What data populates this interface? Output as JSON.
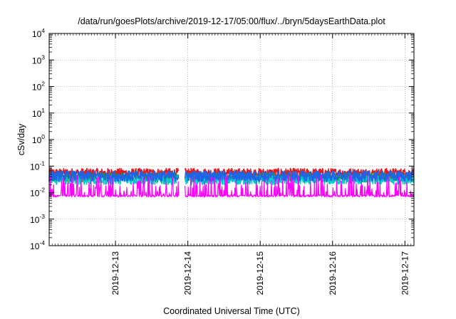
{
  "chart_data": {
    "type": "line",
    "title": "/data/run/goesPlots/archive/2019-12-17/05:00/flux/../bryn/5daysEarthData.plot",
    "xlabel": "Coordinated Universal Time (UTC)",
    "ylabel": "cSv/day",
    "yscale": "log",
    "ylim": [
      0.0001,
      10000
    ],
    "xlim": [
      "2019-12-12T02:00",
      "2019-12-17T03:00"
    ],
    "y_ticks": [
      {
        "base": "10",
        "exp": "-4"
      },
      {
        "base": "10",
        "exp": "-3"
      },
      {
        "base": "10",
        "exp": "-2"
      },
      {
        "base": "10",
        "exp": "-1"
      },
      {
        "base": "10",
        "exp": "0"
      },
      {
        "base": "10",
        "exp": "1"
      },
      {
        "base": "10",
        "exp": "2"
      },
      {
        "base": "10",
        "exp": "3"
      },
      {
        "base": "10",
        "exp": "4"
      }
    ],
    "x_ticks": [
      "2019-12-13",
      "2019-12-14",
      "2019-12-15",
      "2019-12-16",
      "2019-12-17"
    ],
    "x_tick_dates": [
      "2019-12-13T00:00",
      "2019-12-14T00:00",
      "2019-12-15T00:00",
      "2019-12-16T00:00",
      "2019-12-17T00:00"
    ],
    "grid": true,
    "legend": "none",
    "data_gaps": [
      [
        "2019-12-13T21:00",
        "2019-12-13T23:00"
      ]
    ],
    "series": [
      {
        "color": "#e41a1c",
        "base": 0.055,
        "low": 0.045,
        "high": 0.1,
        "noise": 0.35,
        "spiky": false
      },
      {
        "color": "#2f8f2f",
        "base": 0.038,
        "low": 0.013,
        "high": 0.06,
        "noise": 0.35,
        "spiky": false
      },
      {
        "color": "#00cccc",
        "base": 0.03,
        "low": 0.011,
        "high": 0.055,
        "noise": 0.35,
        "spiky": false
      },
      {
        "color": "#1e64e6",
        "base": 0.042,
        "low": 0.02,
        "high": 0.085,
        "noise": 0.4,
        "spiky": false
      },
      {
        "color": "#ff00ff",
        "base": 0.0075,
        "low": 0.0058,
        "high": 0.045,
        "noise": 1.0,
        "spiky": true
      }
    ]
  }
}
